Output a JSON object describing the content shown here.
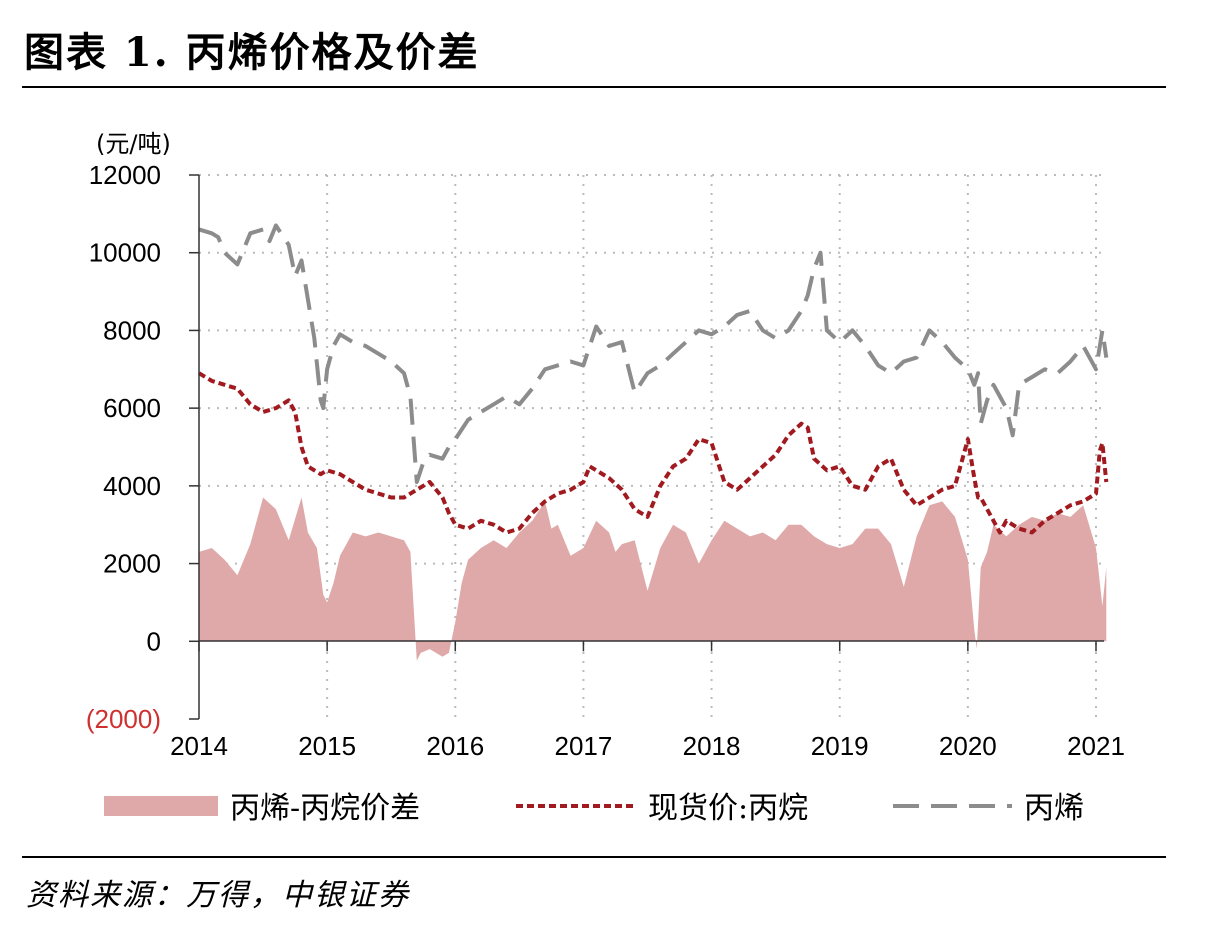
{
  "header": {
    "title": "图表 1. 丙烯价格及价差"
  },
  "footer": {
    "source": "资料来源：万得，中银证券"
  },
  "colors": {
    "spread": "#dfa9aa",
    "propane": "#a01a1f",
    "propylene": "#8c8c8c",
    "negative_label": "#d0302f",
    "grid": "#bbbbbb"
  },
  "chart_data": {
    "type": "line",
    "unit_label": "(元/吨)",
    "ylim": [
      -2000,
      12000
    ],
    "xlim": [
      2014.0,
      2021.08
    ],
    "y_ticks": [
      {
        "value": 12000,
        "label": "12000"
      },
      {
        "value": 10000,
        "label": "10000"
      },
      {
        "value": 8000,
        "label": "8000"
      },
      {
        "value": 6000,
        "label": "6000"
      },
      {
        "value": 4000,
        "label": "4000"
      },
      {
        "value": 2000,
        "label": "2000"
      },
      {
        "value": 0,
        "label": "0"
      },
      {
        "value": -2000,
        "label": "(2000)"
      }
    ],
    "x_ticks": [
      {
        "value": 2014,
        "label": "2014"
      },
      {
        "value": 2015,
        "label": "2015"
      },
      {
        "value": 2016,
        "label": "2016"
      },
      {
        "value": 2017,
        "label": "2017"
      },
      {
        "value": 2018,
        "label": "2018"
      },
      {
        "value": 2019,
        "label": "2019"
      },
      {
        "value": 2020,
        "label": "2020"
      },
      {
        "value": 2021,
        "label": "2021"
      }
    ],
    "series": [
      {
        "name": "丙烯-丙烷价差",
        "style": "area",
        "color": "#dfa9aa",
        "x": [
          2014.0,
          2014.1,
          2014.2,
          2014.3,
          2014.4,
          2014.5,
          2014.6,
          2014.7,
          2014.8,
          2014.85,
          2014.92,
          2014.97,
          2015.0,
          2015.05,
          2015.1,
          2015.2,
          2015.3,
          2015.4,
          2015.5,
          2015.6,
          2015.65,
          2015.7,
          2015.73,
          2015.8,
          2015.9,
          2015.95,
          2016.0,
          2016.05,
          2016.1,
          2016.2,
          2016.3,
          2016.4,
          2016.5,
          2016.6,
          2016.7,
          2016.75,
          2016.8,
          2016.9,
          2017.0,
          2017.1,
          2017.2,
          2017.25,
          2017.3,
          2017.4,
          2017.5,
          2017.6,
          2017.7,
          2017.8,
          2017.9,
          2018.0,
          2018.1,
          2018.2,
          2018.3,
          2018.4,
          2018.5,
          2018.6,
          2018.7,
          2018.8,
          2018.9,
          2019.0,
          2019.1,
          2019.2,
          2019.3,
          2019.4,
          2019.5,
          2019.6,
          2019.7,
          2019.8,
          2019.9,
          2020.0,
          2020.05,
          2020.07,
          2020.1,
          2020.15,
          2020.2,
          2020.3,
          2020.4,
          2020.5,
          2020.6,
          2020.7,
          2020.8,
          2020.9,
          2021.0,
          2021.05,
          2021.08
        ],
        "values": [
          2300,
          2400,
          2100,
          1700,
          2500,
          3700,
          3400,
          2600,
          3700,
          2800,
          2400,
          1200,
          1000,
          1500,
          2200,
          2800,
          2700,
          2800,
          2700,
          2600,
          2300,
          -500,
          -300,
          -200,
          -400,
          -300,
          500,
          1500,
          2100,
          2400,
          2600,
          2400,
          2800,
          3100,
          3600,
          2900,
          3000,
          2200,
          2400,
          3100,
          2800,
          2300,
          2500,
          2600,
          1300,
          2400,
          3000,
          2800,
          2000,
          2600,
          3100,
          2900,
          2700,
          2800,
          2600,
          3000,
          3000,
          2700,
          2500,
          2400,
          2500,
          2900,
          2900,
          2500,
          1400,
          2700,
          3500,
          3600,
          3200,
          2100,
          300,
          -200,
          1900,
          2300,
          3000,
          2700,
          3000,
          3200,
          3100,
          3300,
          3200,
          3500,
          2400,
          900,
          1900
        ]
      },
      {
        "name": "现货价:丙烷",
        "style": "dotted",
        "color": "#a01a1f",
        "x": [
          2014.0,
          2014.1,
          2014.2,
          2014.3,
          2014.4,
          2014.5,
          2014.6,
          2014.7,
          2014.75,
          2014.8,
          2014.85,
          2014.9,
          2014.95,
          2015.0,
          2015.1,
          2015.2,
          2015.3,
          2015.4,
          2015.5,
          2015.6,
          2015.7,
          2015.8,
          2015.9,
          2015.95,
          2016.0,
          2016.1,
          2016.2,
          2016.3,
          2016.4,
          2016.5,
          2016.6,
          2016.7,
          2016.8,
          2016.9,
          2017.0,
          2017.05,
          2017.1,
          2017.2,
          2017.3,
          2017.4,
          2017.5,
          2017.6,
          2017.7,
          2017.8,
          2017.9,
          2018.0,
          2018.1,
          2018.2,
          2018.3,
          2018.4,
          2018.5,
          2018.6,
          2018.7,
          2018.75,
          2018.8,
          2018.9,
          2019.0,
          2019.1,
          2019.2,
          2019.3,
          2019.4,
          2019.5,
          2019.6,
          2019.7,
          2019.8,
          2019.9,
          2020.0,
          2020.05,
          2020.08,
          2020.1,
          2020.2,
          2020.25,
          2020.3,
          2020.4,
          2020.5,
          2020.6,
          2020.7,
          2020.8,
          2020.9,
          2021.0,
          2021.03,
          2021.05,
          2021.08
        ],
        "values": [
          6900,
          6700,
          6600,
          6500,
          6100,
          5900,
          6000,
          6200,
          5900,
          5000,
          4500,
          4400,
          4300,
          4400,
          4300,
          4100,
          3900,
          3800,
          3700,
          3700,
          3900,
          4100,
          3700,
          3300,
          3000,
          2900,
          3100,
          3000,
          2800,
          2900,
          3300,
          3600,
          3800,
          3900,
          4100,
          4500,
          4400,
          4200,
          3900,
          3400,
          3200,
          4000,
          4500,
          4700,
          5200,
          5100,
          4100,
          3900,
          4200,
          4500,
          4800,
          5300,
          5600,
          5500,
          4700,
          4400,
          4500,
          4000,
          3900,
          4500,
          4700,
          3900,
          3500,
          3700,
          3900,
          4000,
          5200,
          4200,
          3700,
          3700,
          3100,
          2800,
          3100,
          2900,
          2800,
          3100,
          3300,
          3500,
          3600,
          3800,
          4900,
          5100,
          4100
        ]
      },
      {
        "name": "丙烯",
        "style": "dashed",
        "color": "#8c8c8c",
        "x": [
          2014.0,
          2014.1,
          2014.15,
          2014.2,
          2014.3,
          2014.4,
          2014.5,
          2014.55,
          2014.6,
          2014.7,
          2014.75,
          2014.8,
          2014.85,
          2014.9,
          2014.95,
          2014.97,
          2015.0,
          2015.05,
          2015.1,
          2015.2,
          2015.3,
          2015.4,
          2015.5,
          2015.6,
          2015.65,
          2015.7,
          2015.75,
          2015.8,
          2015.9,
          2015.95,
          2016.0,
          2016.1,
          2016.2,
          2016.3,
          2016.4,
          2016.5,
          2016.6,
          2016.7,
          2016.8,
          2016.9,
          2017.0,
          2017.05,
          2017.1,
          2017.2,
          2017.3,
          2017.4,
          2017.5,
          2017.6,
          2017.7,
          2017.8,
          2017.9,
          2018.0,
          2018.1,
          2018.2,
          2018.3,
          2018.4,
          2018.5,
          2018.6,
          2018.7,
          2018.75,
          2018.8,
          2018.85,
          2018.9,
          2019.0,
          2019.1,
          2019.2,
          2019.3,
          2019.4,
          2019.5,
          2019.6,
          2019.7,
          2019.8,
          2019.9,
          2020.0,
          2020.05,
          2020.08,
          2020.1,
          2020.15,
          2020.2,
          2020.25,
          2020.3,
          2020.35,
          2020.4,
          2020.5,
          2020.6,
          2020.7,
          2020.8,
          2020.9,
          2021.0,
          2021.05,
          2021.08
        ],
        "values": [
          10600,
          10500,
          10400,
          10000,
          9700,
          10500,
          10600,
          10300,
          10700,
          10200,
          9400,
          9800,
          8800,
          7800,
          6200,
          6000,
          7000,
          7600,
          7900,
          7700,
          7600,
          7400,
          7200,
          6900,
          6300,
          4100,
          4600,
          4800,
          4700,
          5000,
          5200,
          5700,
          5900,
          6100,
          6300,
          6100,
          6500,
          7000,
          7100,
          7200,
          7100,
          7600,
          8100,
          7600,
          7700,
          6400,
          6900,
          7100,
          7400,
          7700,
          8000,
          7900,
          8100,
          8400,
          8500,
          8000,
          7800,
          8000,
          8500,
          8900,
          9600,
          10000,
          8000,
          7700,
          8000,
          7600,
          7100,
          6900,
          7200,
          7300,
          8000,
          7700,
          7300,
          7000,
          6600,
          6900,
          5600,
          6200,
          6600,
          6300,
          6000,
          5300,
          6600,
          6800,
          7000,
          6900,
          7200,
          7600,
          7000,
          8000,
          7300
        ]
      }
    ],
    "legend": {
      "position": "bottom",
      "entries": [
        "丙烯-丙烷价差",
        "现货价:丙烷",
        "丙烯"
      ]
    }
  }
}
